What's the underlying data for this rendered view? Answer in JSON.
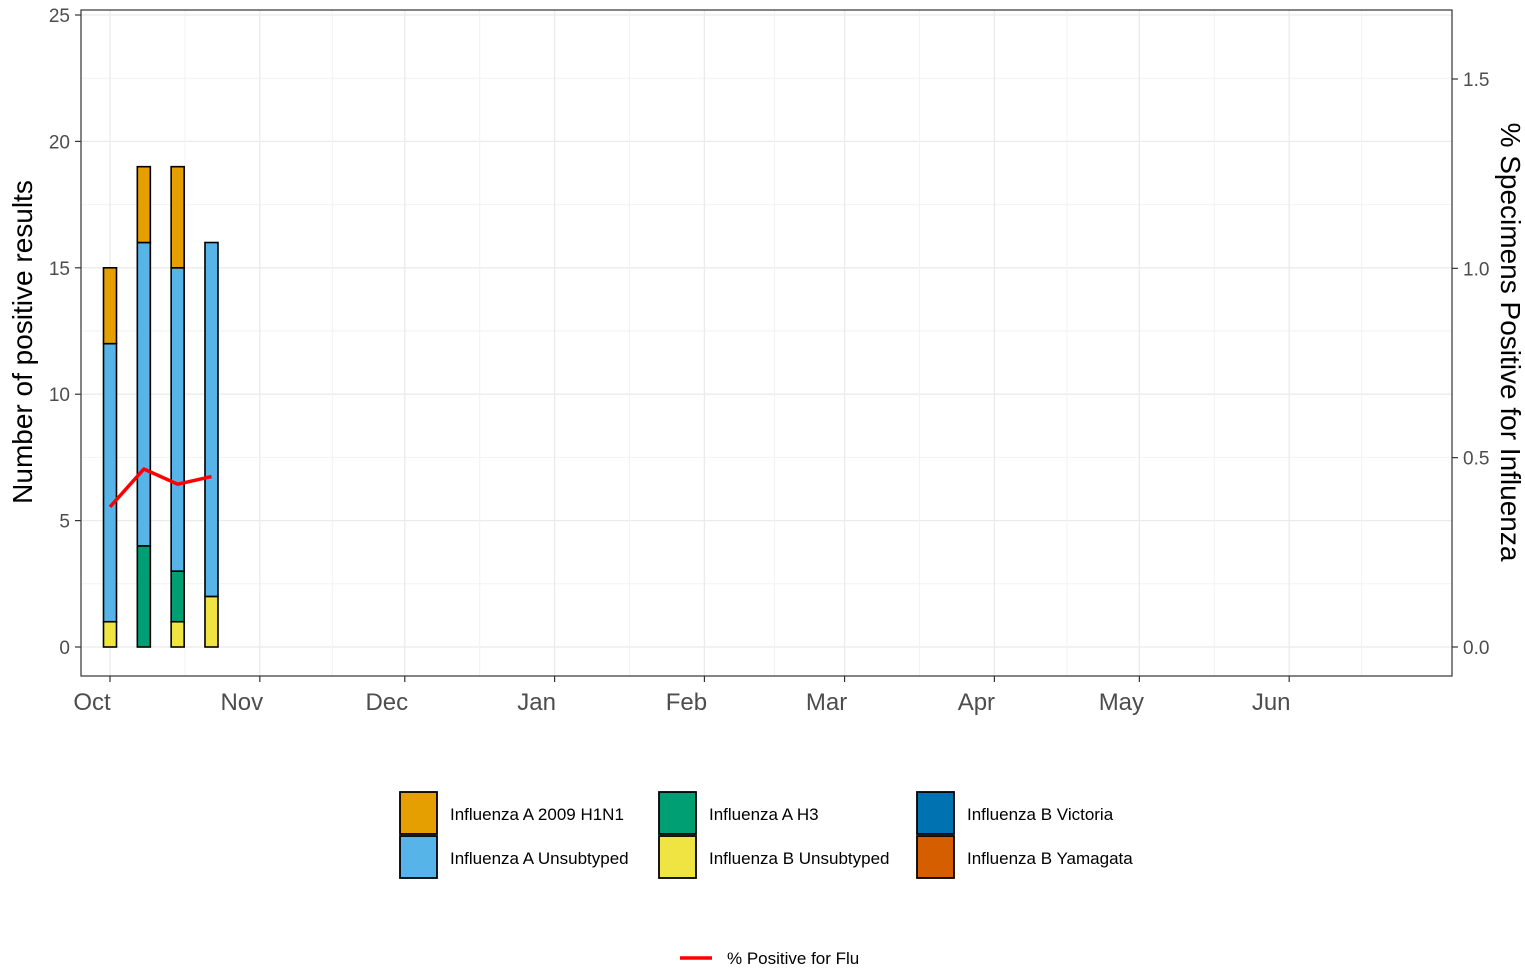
{
  "chart_data": {
    "type": "bar",
    "stacked": true,
    "ylabel": "Number of positive results",
    "y2label": "% Specimens Positive for Influenza",
    "ylim": [
      0,
      25
    ],
    "y2lim": [
      0,
      1.65
    ],
    "xlim": [
      "2023-10-01",
      "2024-06-26"
    ],
    "yticks": [
      0,
      5,
      10,
      15,
      20,
      25
    ],
    "y2ticks": [
      0.0,
      0.5,
      1.0,
      1.5
    ],
    "y2tick_labels": [
      "0.0",
      "0.5",
      "1.0",
      "1.5"
    ],
    "month_ticks": [
      {
        "label": "Oct",
        "date": "2023-10-01"
      },
      {
        "label": "Nov",
        "date": "2023-11-01"
      },
      {
        "label": "Dec",
        "date": "2023-12-01"
      },
      {
        "label": "Jan",
        "date": "2024-01-01"
      },
      {
        "label": "Feb",
        "date": "2024-02-01"
      },
      {
        "label": "Mar",
        "date": "2024-03-01"
      },
      {
        "label": "Apr",
        "date": "2024-04-01"
      },
      {
        "label": "May",
        "date": "2024-05-01"
      },
      {
        "label": "Jun",
        "date": "2024-06-01"
      }
    ],
    "grid": true,
    "x": [
      "2023-10-01",
      "2023-10-08",
      "2023-10-15",
      "2023-10-22"
    ],
    "series": [
      {
        "name": "Influenza B Unsubtyped",
        "color": "#F0E442",
        "values": [
          1,
          0,
          1,
          2
        ]
      },
      {
        "name": "Influenza A H3",
        "color": "#009E73",
        "values": [
          0,
          4,
          2,
          0
        ]
      },
      {
        "name": "Influenza A Unsubtyped",
        "color": "#56B4E9",
        "values": [
          11,
          12,
          12,
          14
        ]
      },
      {
        "name": "Influenza A 2009 H1N1",
        "color": "#E69F00",
        "values": [
          3,
          3,
          4,
          0
        ]
      }
    ],
    "line_series": {
      "name": "% Positive for Flu",
      "axis": "right",
      "color": "#FF0000",
      "values": [
        0.37,
        0.47,
        0.43,
        0.45
      ]
    },
    "legend": {
      "placement": "bottom",
      "items": [
        {
          "label": "Influenza A 2009 H1N1",
          "color": "#E69F00"
        },
        {
          "label": "Influenza A H3",
          "color": "#009E73"
        },
        {
          "label": "Influenza B Victoria",
          "color": "#0072B2"
        },
        {
          "label": "Influenza A Unsubtyped",
          "color": "#56B4E9"
        },
        {
          "label": "Influenza B Unsubtyped",
          "color": "#F0E442"
        },
        {
          "label": "Influenza B Yamagata",
          "color": "#D55E00"
        }
      ],
      "line_label": "% Positive for Flu"
    }
  }
}
